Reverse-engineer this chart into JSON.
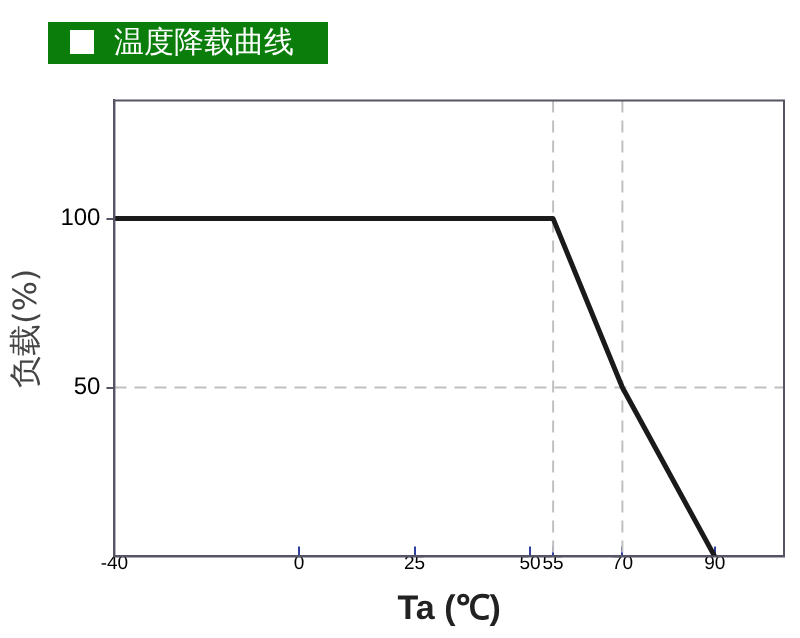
{
  "chart_data": {
    "type": "line",
    "title": "温度降载曲线",
    "xlabel": "Ta (℃)",
    "ylabel": "负载(%)",
    "x": [
      -40,
      55,
      70,
      90
    ],
    "series": [
      {
        "color": "#1a1a1a",
        "values": [
          100,
          100,
          50,
          0
        ]
      }
    ],
    "xlim": [
      -40,
      105
    ],
    "xticks": [
      -40,
      0,
      25,
      50,
      55,
      70,
      90
    ],
    "ylim": [
      0,
      135
    ],
    "yticks": [
      50,
      100
    ],
    "ref_lines": [
      {
        "axis": "y",
        "value": 50,
        "color": "#c0c0c0",
        "line_style": "dashed"
      },
      {
        "axis": "x",
        "value": 55,
        "color": "#c0c0c0",
        "line_style": "dashed"
      },
      {
        "axis": "x",
        "value": 70,
        "color": "#c0c0c0",
        "line_style": "dashed"
      }
    ],
    "grid": false,
    "legend": false,
    "marker": "none",
    "line_style": "solid"
  }
}
